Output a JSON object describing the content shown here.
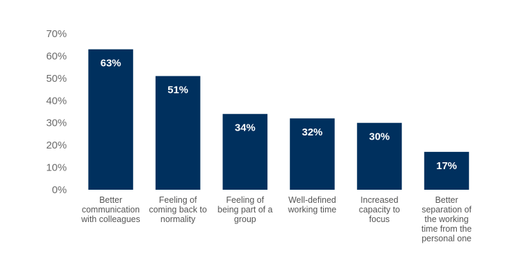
{
  "chart_data": {
    "type": "bar",
    "categories": [
      [
        "Better",
        "communication",
        "with colleagues"
      ],
      [
        "Feeling of",
        "coming back to",
        "normality"
      ],
      [
        "Feeling of",
        "being part of a",
        "group"
      ],
      [
        "Well-defined",
        "working time"
      ],
      [
        "Increased",
        "capacity to",
        "focus"
      ],
      [
        "Better",
        "separation of",
        "the working",
        "time from the",
        "personal one"
      ]
    ],
    "values": [
      63,
      51,
      34,
      32,
      30,
      17
    ],
    "data_labels": [
      "63%",
      "51%",
      "34%",
      "32%",
      "30%",
      "17%"
    ],
    "yticks": [
      "0%",
      "10%",
      "20%",
      "30%",
      "40%",
      "50%",
      "60%",
      "70%"
    ],
    "ylim": [
      0,
      70
    ],
    "grid": false,
    "legend": "none",
    "bar_color": "#00305e"
  }
}
